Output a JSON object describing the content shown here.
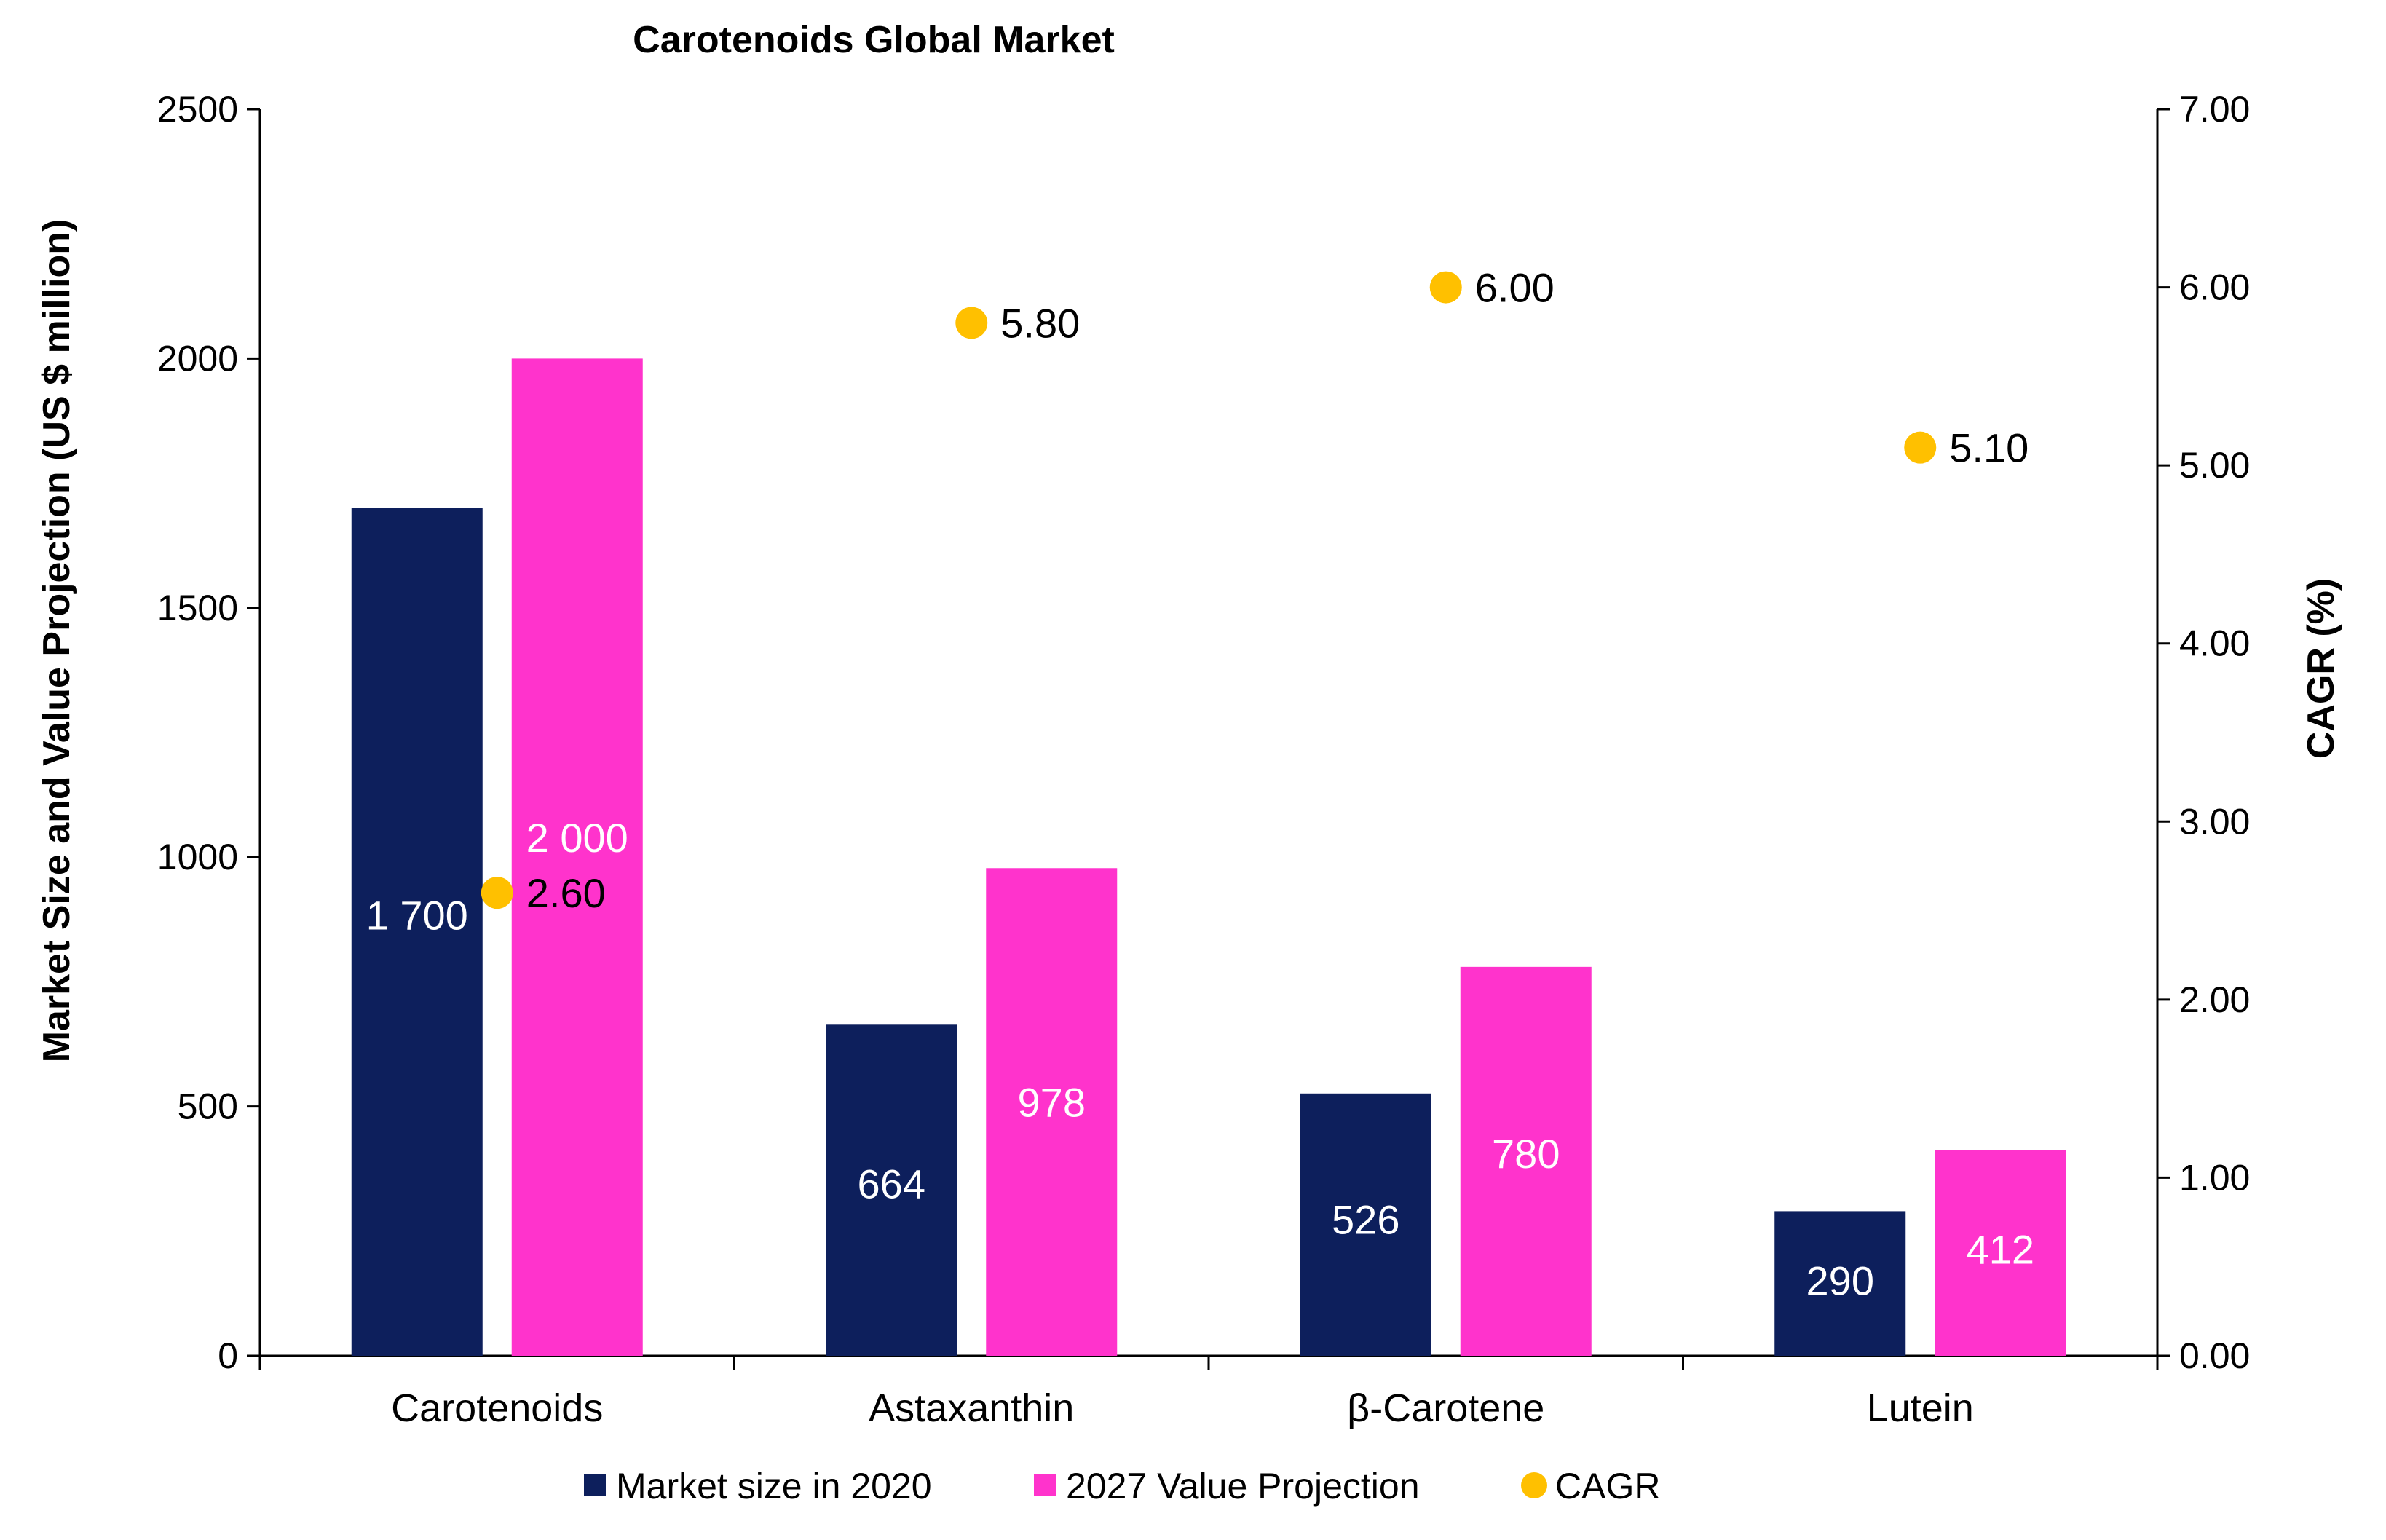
{
  "chart_data": {
    "type": "bar",
    "title": "Carotenoids Global Market",
    "xlabel": "",
    "ylabel": "Market Size and Value Projection (US $ million)",
    "y2label": "CAGR (%)",
    "categories": [
      "Carotenoids",
      "Astaxanthin",
      "β-Carotene",
      "Lutein"
    ],
    "ylim": [
      0,
      2500
    ],
    "yticks": [
      "0",
      "500",
      "1000",
      "1500",
      "2000",
      "2500"
    ],
    "y2lim": [
      0,
      7
    ],
    "y2ticks": [
      "0.00",
      "1.00",
      "2.00",
      "3.00",
      "4.00",
      "5.00",
      "6.00",
      "7.00"
    ],
    "grid": false,
    "legend_position": "bottom-center",
    "series": [
      {
        "name": "Market size in 2020",
        "kind": "bar",
        "axis": "left",
        "color": "#0d1f5c",
        "values": [
          1700,
          664,
          526,
          290
        ],
        "labels": [
          "1 700",
          "664",
          "526",
          "290"
        ]
      },
      {
        "name": "2027 Value Projection",
        "kind": "bar",
        "axis": "left",
        "color": "#ff33cc",
        "values": [
          2000,
          978,
          780,
          412
        ],
        "labels": [
          "2 000",
          "978",
          "780",
          "412"
        ]
      },
      {
        "name": "CAGR",
        "kind": "scatter",
        "axis": "right",
        "color": "#ffc000",
        "values": [
          2.6,
          5.8,
          6.0,
          5.1
        ],
        "labels": [
          "2.60",
          "5.80",
          "6.00",
          "5.10"
        ]
      }
    ]
  }
}
